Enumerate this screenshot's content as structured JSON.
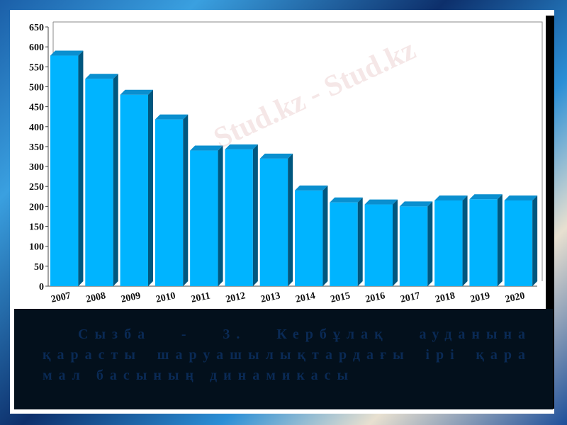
{
  "caption": "Сызба - 3. Кербұлақ ауданына қарасты шаруашылықтардағы ірі қара мал басының динамикасы",
  "watermark": "Stud.kz - Stud.kz",
  "chart_data": {
    "type": "bar",
    "title": "",
    "xlabel": "",
    "ylabel": "",
    "categories": [
      "2007",
      "2008",
      "2009",
      "2010",
      "2011",
      "2012",
      "2013",
      "2014",
      "2015",
      "2016",
      "2017",
      "2018",
      "2019",
      "2020"
    ],
    "values": [
      578,
      520,
      480,
      418,
      340,
      343,
      320,
      240,
      210,
      205,
      200,
      215,
      218,
      215
    ],
    "ylim": [
      0,
      650
    ],
    "yticks": [
      0,
      50,
      100,
      150,
      200,
      250,
      300,
      350,
      400,
      450,
      500,
      550,
      600,
      650
    ],
    "grid": false,
    "style": "3d",
    "colors": {
      "front": "#00b4ff",
      "side": "#00577f",
      "top": "#0a8fcf"
    }
  }
}
